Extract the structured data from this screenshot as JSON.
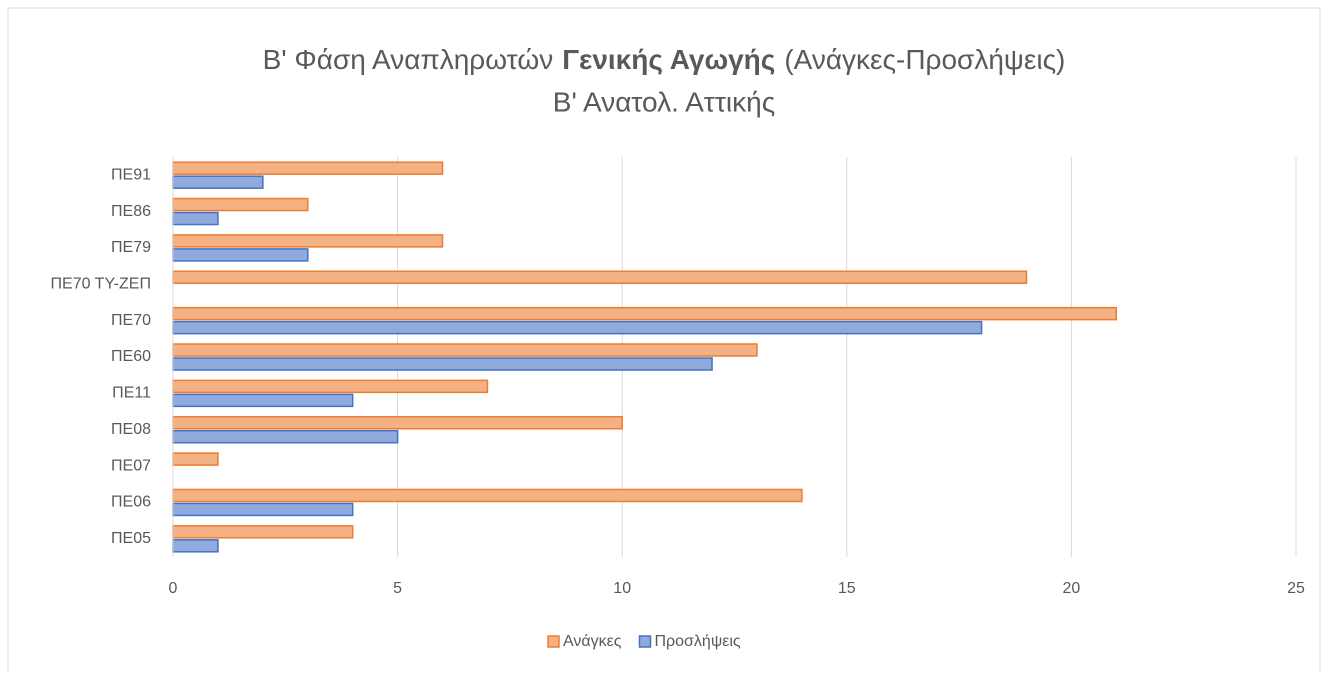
{
  "chart_data": {
    "type": "hbar",
    "title_parts": [
      "Β' Φάση Αναπληρωτών",
      "Γενικής Αγωγής",
      "(Ανάγκες-Προσλήψεις)"
    ],
    "subtitle": "Β' Ανατολ. Αττικής",
    "categories": [
      "ΠΕ05",
      "ΠΕ06",
      "ΠΕ07",
      "ΠΕ08",
      "ΠΕ11",
      "ΠΕ60",
      "ΠΕ70",
      "ΠΕ70 ΤΥ-ΖΕΠ",
      "ΠΕ79",
      "ΠΕ86",
      "ΠΕ91"
    ],
    "series": [
      {
        "name": "Ανάγκες",
        "color": "#f4b183",
        "stroke": "#ed7d31",
        "values": [
          4,
          14,
          1,
          10,
          7,
          13,
          21,
          19,
          6,
          3,
          6
        ]
      },
      {
        "name": "Προσλήψεις",
        "color": "#8faadc",
        "stroke": "#4472c4",
        "values": [
          1,
          4,
          null,
          5,
          4,
          12,
          18,
          null,
          3,
          1,
          2
        ]
      }
    ],
    "xlim": [
      0,
      25
    ],
    "xticks": [
      0,
      5,
      10,
      15,
      20,
      25
    ],
    "grid": true,
    "legend": "bottom"
  }
}
